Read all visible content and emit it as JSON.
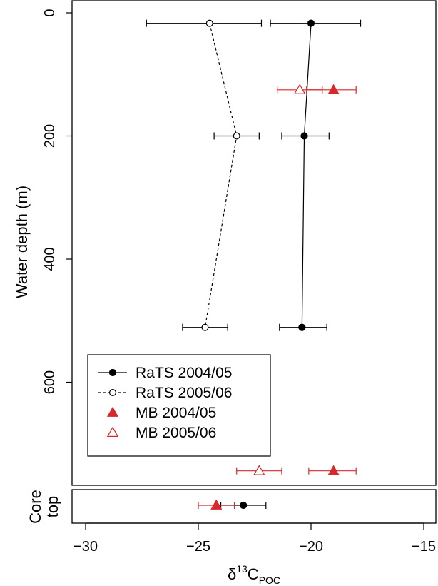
{
  "chart_data": [
    {
      "panel": "main",
      "type": "scatter",
      "x_axis_orientation": "shared",
      "xlabel_main": "δ",
      "xlabel_sup": "13",
      "xlabel_sub": "POC",
      "ylabel": "Water depth (m)",
      "xlim": [
        -30.5,
        -14.8
      ],
      "ylim": [
        -20,
        765
      ],
      "y_inverted": true,
      "x_ticks": [
        -30,
        -25,
        -20,
        -15
      ],
      "x_tick_labels": [
        "−30",
        "−25",
        "−20",
        "−15"
      ],
      "y_ticks": [
        0,
        200,
        400,
        600
      ],
      "y_tick_labels": [
        "0",
        "200",
        "400",
        "600"
      ],
      "legend_placement": "lower-left",
      "series": [
        {
          "name": "RaTS 2004/05",
          "marker": "filled-circle",
          "line": "solid",
          "color": "#000000",
          "points": [
            {
              "x": -20.0,
              "y": 17,
              "xerr_low": -21.8,
              "xerr_high": -17.8
            },
            {
              "x": -20.3,
              "y": 200,
              "xerr_low": -21.3,
              "xerr_high": -19.2
            },
            {
              "x": -20.4,
              "y": 511,
              "xerr_low": -21.4,
              "xerr_high": -19.3
            }
          ]
        },
        {
          "name": "RaTS 2005/06",
          "marker": "open-circle",
          "line": "dashed",
          "color": "#000000",
          "points": [
            {
              "x": -24.5,
              "y": 17,
              "xerr_low": -27.3,
              "xerr_high": -22.2
            },
            {
              "x": -23.3,
              "y": 200,
              "xerr_low": -24.3,
              "xerr_high": -22.3
            },
            {
              "x": -24.7,
              "y": 511,
              "xerr_low": -25.7,
              "xerr_high": -23.7
            }
          ]
        },
        {
          "name": "MB 2004/05",
          "marker": "filled-triangle",
          "line": "none",
          "color": "#d7282b",
          "points": [
            {
              "x": -19.0,
              "y": 125,
              "xerr_low": -20.2,
              "xerr_high": -18.0
            },
            {
              "x": -19.0,
              "y": 744,
              "xerr_low": -20.1,
              "xerr_high": -18.0
            }
          ]
        },
        {
          "name": "MB 2005/06",
          "marker": "open-triangle",
          "line": "none",
          "color": "#d7282b",
          "points": [
            {
              "x": -20.5,
              "y": 125,
              "xerr_low": -21.5,
              "xerr_high": -19.5
            },
            {
              "x": -22.3,
              "y": 744,
              "xerr_low": -23.3,
              "xerr_high": -21.3
            }
          ]
        }
      ]
    },
    {
      "panel": "core-top",
      "type": "scatter",
      "ylabel_lines": [
        "Core",
        "top"
      ],
      "xlim": [
        -30.5,
        -14.8
      ],
      "series": [
        {
          "name": "RaTS 2004/05",
          "marker": "filled-circle",
          "color": "#000000",
          "points": [
            {
              "x": -23.0,
              "xerr_low": -24.0,
              "xerr_high": -22.0
            }
          ]
        },
        {
          "name": "MB 2004/05",
          "marker": "filled-triangle",
          "color": "#d7282b",
          "points": [
            {
              "x": -24.2,
              "xerr_low": -25.0,
              "xerr_high": -23.4
            }
          ]
        }
      ]
    }
  ]
}
